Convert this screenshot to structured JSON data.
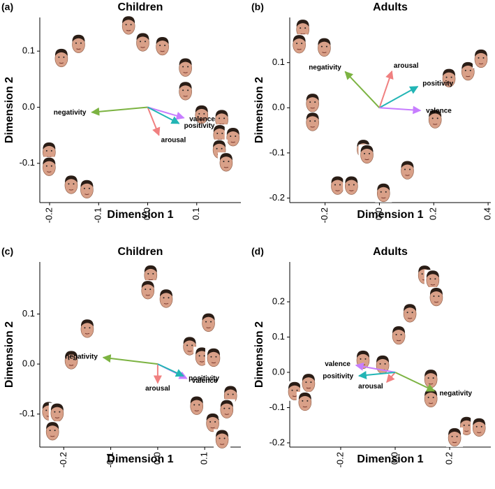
{
  "chart_data": [
    {
      "type": "scatter",
      "panel_label": "(a)",
      "title": "Children",
      "x_label": "Dimension 1",
      "y_label": "Dimension 2",
      "xlim": [
        -0.22,
        0.19
      ],
      "ylim": [
        -0.17,
        0.16
      ],
      "xticks": [
        -0.2,
        -0.1,
        {
          "value": 0,
          "label": "0.0"
        },
        0.1
      ],
      "yticks": [
        -0.1,
        {
          "value": 0,
          "label": "0.0"
        },
        0.1
      ],
      "x": [
        -0.176,
        -0.141,
        -0.039,
        -0.01,
        0.03,
        0.077,
        0.077,
        0.11,
        0.151,
        0.147,
        0.174,
        0.146,
        0.16,
        -0.201,
        -0.201,
        -0.156,
        -0.124
      ],
      "y": [
        0.088,
        0.113,
        0.146,
        0.116,
        0.109,
        0.071,
        0.029,
        -0.013,
        -0.021,
        -0.048,
        -0.053,
        -0.075,
        -0.098,
        -0.079,
        -0.106,
        -0.138,
        -0.146
      ],
      "vectors": [
        {
          "name": "negativity",
          "color": "#7cb342",
          "x": -0.114,
          "y": -0.009
        },
        {
          "name": "arousal",
          "color": "#f08080",
          "x": 0.023,
          "y": -0.05
        },
        {
          "name": "valence",
          "color": "#c77dff",
          "x": 0.074,
          "y": -0.019
        },
        {
          "name": "positivity",
          "color": "#22b5b5",
          "x": 0.064,
          "y": -0.029
        }
      ]
    },
    {
      "type": "scatter",
      "panel_label": "(b)",
      "title": "Adults",
      "x_label": "Dimension 1",
      "y_label": "Dimension 2",
      "xlim": [
        -0.33,
        0.41
      ],
      "ylim": [
        -0.21,
        0.2
      ],
      "xticks": [
        -0.2,
        {
          "value": 0,
          "label": "0.0"
        },
        0.2,
        0.4
      ],
      "yticks": [
        -0.2,
        -0.1,
        {
          "value": 0,
          "label": "0.0"
        },
        0.1
      ],
      "x": [
        -0.282,
        -0.295,
        -0.203,
        -0.246,
        -0.246,
        -0.059,
        -0.046,
        -0.154,
        -0.103,
        0.015,
        0.103,
        0.256,
        0.326,
        0.374,
        0.205
      ],
      "y": [
        0.175,
        0.141,
        0.134,
        0.011,
        -0.031,
        -0.091,
        -0.103,
        -0.172,
        -0.172,
        -0.188,
        -0.138,
        0.066,
        0.081,
        0.109,
        -0.025
      ],
      "vectors": [
        {
          "name": "negativity",
          "color": "#7cb342",
          "x": -0.126,
          "y": 0.08
        },
        {
          "name": "arousal",
          "color": "#f08080",
          "x": 0.046,
          "y": 0.081
        },
        {
          "name": "positivity",
          "color": "#22b5b5",
          "x": 0.141,
          "y": 0.047
        },
        {
          "name": "valence",
          "color": "#c77dff",
          "x": 0.151,
          "y": -0.006
        }
      ]
    },
    {
      "type": "scatter",
      "panel_label": "(c)",
      "title": "Children",
      "x_label": "Dimension 1",
      "y_label": "Dimension 2",
      "xlim": [
        -0.251,
        0.177
      ],
      "ylim": [
        -0.166,
        0.204
      ],
      "xticks": [
        -0.2,
        -0.1,
        {
          "value": 0,
          "label": "0.0"
        },
        0.1
      ],
      "yticks": [
        -0.1,
        {
          "value": 0,
          "label": "0.0"
        },
        0.1
      ],
      "x": [
        -0.015,
        -0.021,
        0.018,
        0.108,
        0.068,
        0.094,
        0.119,
        -0.15,
        -0.184,
        -0.232,
        -0.214,
        -0.224,
        0.083,
        0.117,
        0.155,
        0.147,
        0.137
      ],
      "y": [
        0.179,
        0.148,
        0.131,
        0.083,
        0.036,
        0.015,
        0.013,
        0.071,
        0.008,
        -0.094,
        -0.097,
        -0.134,
        -0.083,
        -0.117,
        -0.062,
        -0.09,
        -0.15
      ],
      "vectors": [
        {
          "name": "negativity",
          "color": "#7cb342",
          "x": -0.116,
          "y": 0.013
        },
        {
          "name": "arousal",
          "color": "#f08080",
          "x": 0,
          "y": -0.038
        },
        {
          "name": "valence",
          "color": "#c77dff",
          "x": 0.062,
          "y": -0.029
        },
        {
          "name": "positivity",
          "color": "#22b5b5",
          "x": 0.055,
          "y": -0.024
        }
      ]
    },
    {
      "type": "scatter",
      "panel_label": "(d)",
      "title": "Adults",
      "x_label": "Dimension 1",
      "y_label": "Dimension 2",
      "xlim": [
        -0.387,
        0.351
      ],
      "ylim": [
        -0.212,
        0.313
      ],
      "xticks": [
        -0.2,
        {
          "value": 0,
          "label": "0.0"
        },
        0.2
      ],
      "yticks": [
        -0.2,
        -0.1,
        {
          "value": 0,
          "label": "0.0"
        },
        0.1,
        0.2
      ],
      "x": [
        0.108,
        0.138,
        0.151,
        0.054,
        0.013,
        -0.118,
        -0.046,
        0.131,
        0.131,
        -0.369,
        -0.318,
        -0.331,
        0.262,
        0.308,
        0.218
      ],
      "y": [
        0.277,
        0.263,
        0.214,
        0.168,
        0.105,
        0.036,
        0.022,
        -0.018,
        -0.073,
        -0.053,
        -0.03,
        -0.083,
        -0.152,
        -0.156,
        -0.184
      ],
      "vectors": [
        {
          "name": "negativity",
          "color": "#7cb342",
          "x": 0.144,
          "y": -0.053
        },
        {
          "name": "arousal",
          "color": "#f08080",
          "x": -0.031,
          "y": -0.028
        },
        {
          "name": "valence",
          "color": "#c77dff",
          "x": -0.144,
          "y": 0.02
        },
        {
          "name": "positivity",
          "color": "#22b5b5",
          "x": -0.133,
          "y": -0.01
        }
      ]
    }
  ]
}
